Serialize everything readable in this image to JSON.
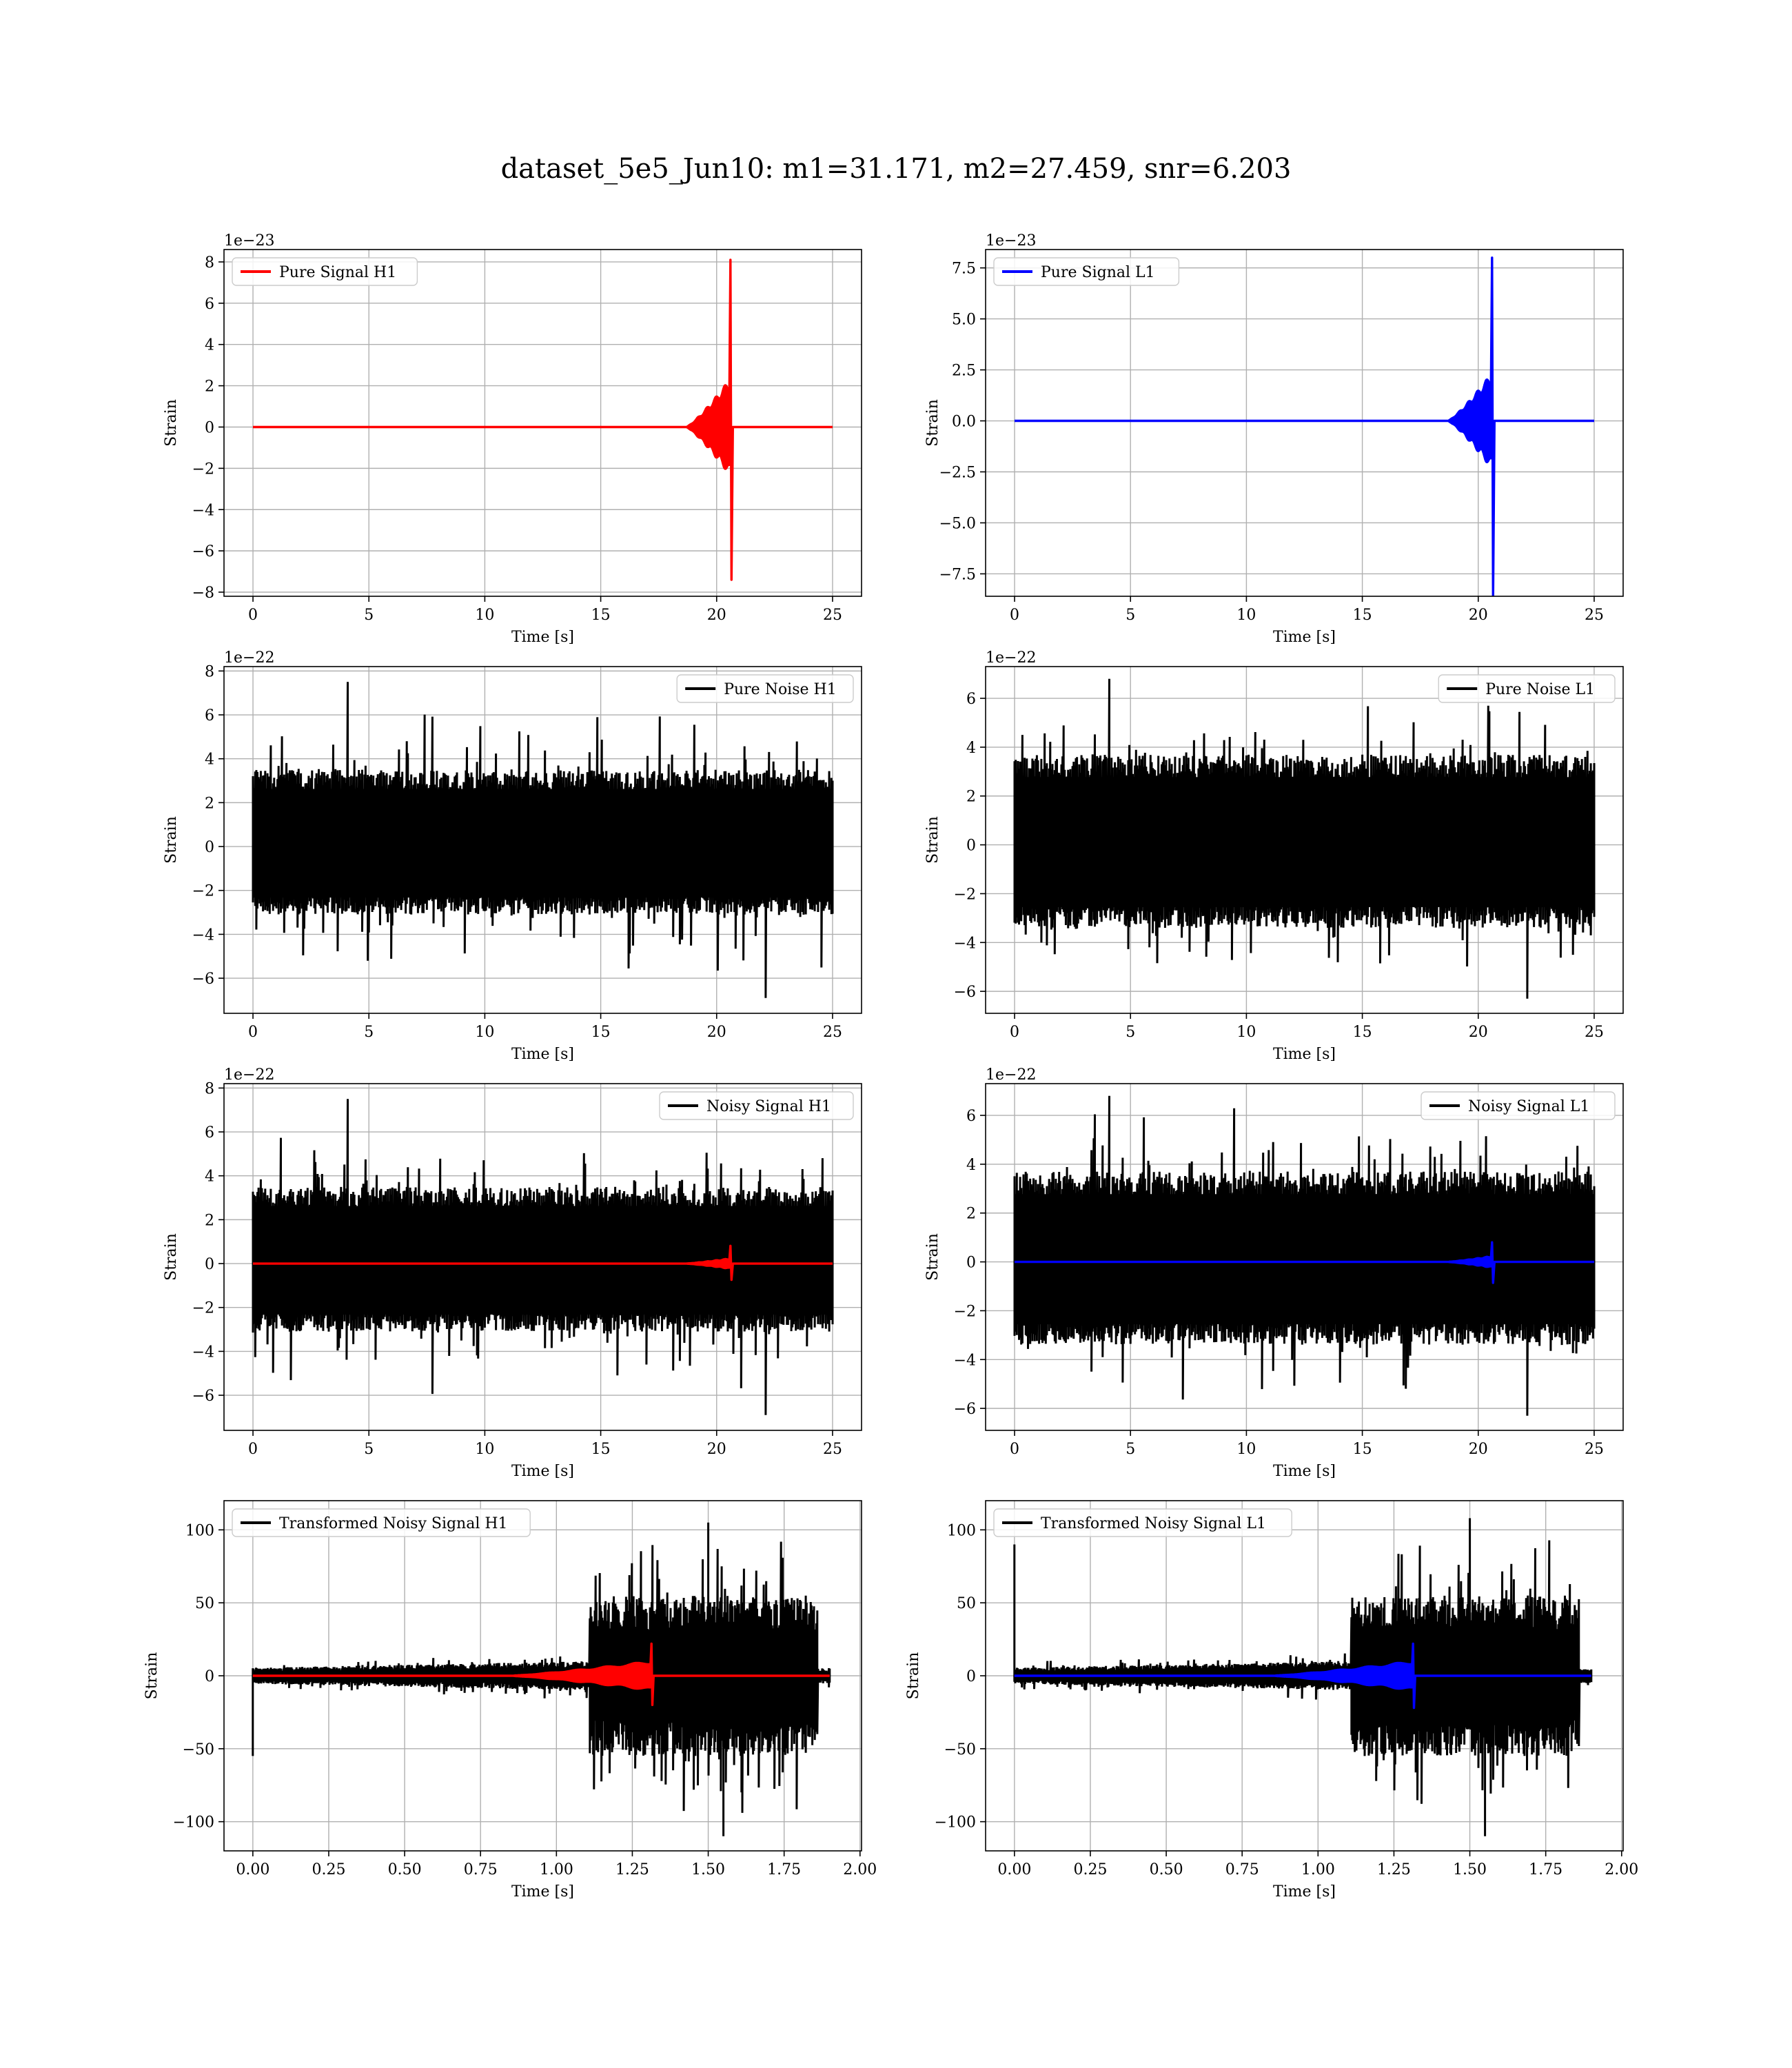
{
  "figure": {
    "suptitle": "dataset_5e5_Jun10: m1=31.171, m2=27.459, snr=6.203",
    "colors": {
      "h1": "#ff0000",
      "l1": "#0000ff",
      "noise": "#000000",
      "grid": "#b0b0b0"
    }
  },
  "chart_data": [
    {
      "type": "line",
      "title": "",
      "xlabel": "Time [s]",
      "ylabel": "Strain",
      "offset_text": "1e−23",
      "xlim": [
        -1.25,
        26.25
      ],
      "ylim": [
        -8.2,
        8.6
      ],
      "grid": true,
      "legend_loc": "upper left",
      "xticks": [
        0,
        5,
        10,
        15,
        20,
        25
      ],
      "xtick_labels": [
        "0",
        "5",
        "10",
        "15",
        "20",
        "25"
      ],
      "yticks": [
        -8,
        -6,
        -4,
        -2,
        0,
        2,
        4,
        6,
        8
      ],
      "ytick_labels": [
        "−8",
        "−6",
        "−4",
        "−2",
        "0",
        "2",
        "4",
        "6",
        "8"
      ],
      "series": [
        {
          "name": "Pure Signal H1",
          "color": "#ff0000",
          "kind": "chirp",
          "x_range": [
            0,
            25
          ],
          "t_start": 18.7,
          "t_merge": 20.55,
          "t_end": 20.7,
          "inspiral_amplitude": 2.3,
          "peak": 8.1,
          "trough": -7.4
        }
      ]
    },
    {
      "type": "line",
      "title": "",
      "xlabel": "Time [s]",
      "ylabel": "Strain",
      "offset_text": "1e−23",
      "xlim": [
        -1.25,
        26.25
      ],
      "ylim": [
        -8.6,
        8.4
      ],
      "grid": true,
      "legend_loc": "upper left",
      "xticks": [
        0,
        5,
        10,
        15,
        20,
        25
      ],
      "xtick_labels": [
        "0",
        "5",
        "10",
        "15",
        "20",
        "25"
      ],
      "yticks": [
        -7.5,
        -5.0,
        -2.5,
        0.0,
        2.5,
        5.0,
        7.5
      ],
      "ytick_labels": [
        "−7.5",
        "−5.0",
        "−2.5",
        "0.0",
        "2.5",
        "5.0",
        "7.5"
      ],
      "series": [
        {
          "name": "Pure Signal L1",
          "color": "#0000ff",
          "kind": "chirp",
          "x_range": [
            0,
            25
          ],
          "t_start": 18.7,
          "t_merge": 20.55,
          "t_end": 20.7,
          "inspiral_amplitude": 2.3,
          "peak": 8.0,
          "trough": -8.6
        }
      ]
    },
    {
      "type": "line",
      "title": "",
      "xlabel": "Time [s]",
      "ylabel": "Strain",
      "offset_text": "1e−22",
      "xlim": [
        -1.25,
        26.25
      ],
      "ylim": [
        -7.6,
        8.2
      ],
      "grid": true,
      "legend_loc": "upper right",
      "xticks": [
        0,
        5,
        10,
        15,
        20,
        25
      ],
      "xtick_labels": [
        "0",
        "5",
        "10",
        "15",
        "20",
        "25"
      ],
      "yticks": [
        -6,
        -4,
        -2,
        0,
        2,
        4,
        6,
        8
      ],
      "ytick_labels": [
        "−6",
        "−4",
        "−2",
        "0",
        "2",
        "4",
        "6",
        "8"
      ],
      "series": [
        {
          "name": "Pure Noise H1",
          "color": "#000000",
          "kind": "noise",
          "x_range": [
            0,
            25
          ],
          "band_high": 3.5,
          "band_low": -3.1,
          "max": 7.5,
          "min": -6.9
        }
      ]
    },
    {
      "type": "line",
      "title": "",
      "xlabel": "Time [s]",
      "ylabel": "Strain",
      "offset_text": "1e−22",
      "xlim": [
        -1.25,
        26.25
      ],
      "ylim": [
        -6.9,
        7.3
      ],
      "grid": true,
      "legend_loc": "upper right",
      "xticks": [
        0,
        5,
        10,
        15,
        20,
        25
      ],
      "xtick_labels": [
        "0",
        "5",
        "10",
        "15",
        "20",
        "25"
      ],
      "yticks": [
        -6,
        -4,
        -2,
        0,
        2,
        4,
        6
      ],
      "ytick_labels": [
        "−6",
        "−4",
        "−2",
        "0",
        "2",
        "4",
        "6"
      ],
      "series": [
        {
          "name": "Pure Noise L1",
          "color": "#000000",
          "kind": "noise",
          "x_range": [
            0,
            25
          ],
          "band_high": 3.7,
          "band_low": -3.4,
          "max": 6.8,
          "min": -6.3
        }
      ]
    },
    {
      "type": "line",
      "title": "",
      "xlabel": "Time [s]",
      "ylabel": "Strain",
      "offset_text": "1e−22",
      "xlim": [
        -1.25,
        26.25
      ],
      "ylim": [
        -7.6,
        8.2
      ],
      "grid": true,
      "legend_loc": "upper right",
      "xticks": [
        0,
        5,
        10,
        15,
        20,
        25
      ],
      "xtick_labels": [
        "0",
        "5",
        "10",
        "15",
        "20",
        "25"
      ],
      "yticks": [
        -6,
        -4,
        -2,
        0,
        2,
        4,
        6,
        8
      ],
      "ytick_labels": [
        "−6",
        "−4",
        "−2",
        "0",
        "2",
        "4",
        "6",
        "8"
      ],
      "series": [
        {
          "name": "Noisy Signal H1",
          "color": "#000000",
          "kind": "noise",
          "x_range": [
            0,
            25
          ],
          "band_high": 3.5,
          "band_low": -3.1,
          "max": 7.5,
          "min": -6.9
        },
        {
          "color": "#ff0000",
          "kind": "chirp",
          "x_range": [
            0,
            25
          ],
          "t_start": 18.7,
          "t_merge": 20.55,
          "t_end": 20.7,
          "inspiral_amplitude": 0.23,
          "peak": 0.81,
          "trough": -0.74
        }
      ]
    },
    {
      "type": "line",
      "title": "",
      "xlabel": "Time [s]",
      "ylabel": "Strain",
      "offset_text": "1e−22",
      "xlim": [
        -1.25,
        26.25
      ],
      "ylim": [
        -6.9,
        7.3
      ],
      "grid": true,
      "legend_loc": "upper right",
      "xticks": [
        0,
        5,
        10,
        15,
        20,
        25
      ],
      "xtick_labels": [
        "0",
        "5",
        "10",
        "15",
        "20",
        "25"
      ],
      "yticks": [
        -6,
        -4,
        -2,
        0,
        2,
        4,
        6
      ],
      "ytick_labels": [
        "−6",
        "−4",
        "−2",
        "0",
        "2",
        "4",
        "6"
      ],
      "series": [
        {
          "name": "Noisy Signal L1",
          "color": "#000000",
          "kind": "noise",
          "x_range": [
            0,
            25
          ],
          "band_high": 3.7,
          "band_low": -3.4,
          "max": 6.8,
          "min": -6.3
        },
        {
          "color": "#0000ff",
          "kind": "chirp",
          "x_range": [
            0,
            25
          ],
          "t_start": 18.7,
          "t_merge": 20.55,
          "t_end": 20.7,
          "inspiral_amplitude": 0.23,
          "peak": 0.8,
          "trough": -0.86
        }
      ]
    },
    {
      "type": "line",
      "title": "",
      "xlabel": "Time [s]",
      "ylabel": "Strain",
      "offset_text": "",
      "xlim": [
        -0.095,
        2.005
      ],
      "ylim": [
        -120,
        120
      ],
      "grid": true,
      "legend_loc": "upper left",
      "xticks": [
        0.0,
        0.25,
        0.5,
        0.75,
        1.0,
        1.25,
        1.5,
        1.75,
        2.0
      ],
      "xtick_labels": [
        "0.00",
        "0.25",
        "0.50",
        "0.75",
        "1.00",
        "1.25",
        "1.50",
        "1.75",
        "2.00"
      ],
      "yticks": [
        -100,
        -50,
        0,
        50,
        100
      ],
      "ytick_labels": [
        "−100",
        "−50",
        "0",
        "50",
        "100"
      ],
      "series": [
        {
          "name": "Transformed Noisy Signal H1",
          "color": "#000000",
          "kind": "tnoise",
          "x_range": [
            0,
            1.9
          ],
          "t_jump": 1.11,
          "pre_amplitude": 10,
          "post_amplitude": 55,
          "max": 105,
          "min": -110,
          "start_spike": -55
        },
        {
          "color": "#ff0000",
          "kind": "chirp",
          "x_range": [
            0,
            1.9
          ],
          "t_start": 0.85,
          "t_merge": 1.31,
          "t_end": 1.32,
          "inspiral_amplitude": 10,
          "peak": 22,
          "trough": -20
        }
      ]
    },
    {
      "type": "line",
      "title": "",
      "xlabel": "Time [s]",
      "ylabel": "Strain",
      "offset_text": "",
      "xlim": [
        -0.095,
        2.005
      ],
      "ylim": [
        -120,
        120
      ],
      "grid": true,
      "legend_loc": "upper left",
      "xticks": [
        0.0,
        0.25,
        0.5,
        0.75,
        1.0,
        1.25,
        1.5,
        1.75,
        2.0
      ],
      "xtick_labels": [
        "0.00",
        "0.25",
        "0.50",
        "0.75",
        "1.00",
        "1.25",
        "1.50",
        "1.75",
        "2.00"
      ],
      "yticks": [
        -100,
        -50,
        0,
        50,
        100
      ],
      "ytick_labels": [
        "−100",
        "−50",
        "0",
        "50",
        "100"
      ],
      "series": [
        {
          "name": "Transformed Noisy Signal L1",
          "color": "#000000",
          "kind": "tnoise",
          "x_range": [
            0,
            1.9
          ],
          "t_jump": 1.11,
          "pre_amplitude": 10,
          "post_amplitude": 55,
          "max": 108,
          "min": -110,
          "start_spike": 90
        },
        {
          "color": "#0000ff",
          "kind": "chirp",
          "x_range": [
            0,
            1.9
          ],
          "t_start": 0.85,
          "t_merge": 1.31,
          "t_end": 1.32,
          "inspiral_amplitude": 10,
          "peak": 22,
          "trough": -22
        }
      ]
    }
  ]
}
